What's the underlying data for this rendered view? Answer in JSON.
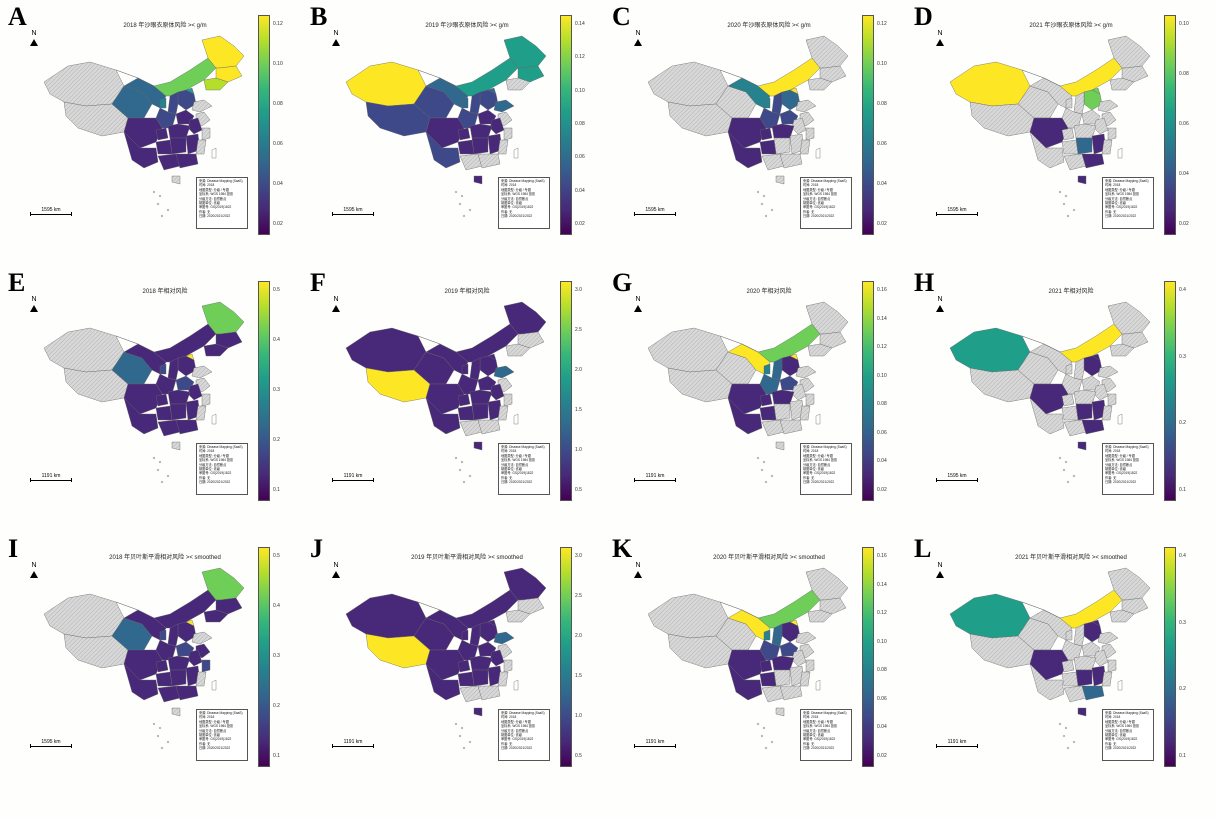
{
  "colors": {
    "none": "#d8d8d8",
    "stripe": "#a8a8a8",
    "border": "#666666",
    "ramp": [
      "#440154",
      "#482878",
      "#3e4989",
      "#31688e",
      "#26828e",
      "#1f9e89",
      "#35b779",
      "#6ece58",
      "#b5de2b",
      "#fde725"
    ]
  },
  "panels": [
    {
      "letter": "A",
      "title": "2018 年沙眼衣原体风险 >< g/m",
      "scale_label": "1595 km",
      "ticks": [
        "0.12",
        "0.10",
        "0.08",
        "0.06",
        "0.04",
        "0.02"
      ],
      "regions": {
        "xinjiang": "none",
        "tibet": "none",
        "qinghai": 3,
        "gansu": 3,
        "inner_mongolia": 7,
        "heilongjiang": 9,
        "jilin": 9,
        "liaoning": 8,
        "beijing": 5,
        "hebei": 2,
        "shanxi": 2,
        "shaanxi": 2,
        "ningxia": 4,
        "sichuan": 1,
        "yunnan": 1,
        "guizhou": 1,
        "chongqing": 1,
        "hubei": 1,
        "hunan": 1,
        "guangxi": 1,
        "guangdong": 1,
        "henan": 1,
        "anhui": 1,
        "jiangsu": "none",
        "zhejiang": "none",
        "shandong": "none",
        "fujian": "none",
        "jiangxi": 1,
        "hainan": "none"
      }
    },
    {
      "letter": "B",
      "title": "2019 年沙眼衣原体风险 >< g/m",
      "scale_label": "1595 km",
      "ticks": [
        "0.14",
        "0.12",
        "0.10",
        "0.08",
        "0.06",
        "0.04",
        "0.02"
      ],
      "regions": {
        "xinjiang": 9,
        "tibet": 2,
        "qinghai": 2,
        "gansu": 3,
        "inner_mongolia": 5,
        "heilongjiang": 5,
        "jilin": 5,
        "liaoning": "none",
        "beijing": 3,
        "hebei": 2,
        "shanxi": 2,
        "shaanxi": 2,
        "ningxia": 3,
        "sichuan": 1,
        "yunnan": 2,
        "guizhou": 1,
        "chongqing": 1,
        "hubei": 1,
        "hunan": 1,
        "guangxi": "none",
        "guangdong": "none",
        "henan": 1,
        "anhui": 1,
        "jiangsu": "none",
        "zhejiang": "none",
        "shandong": 3,
        "fujian": "none",
        "jiangxi": 1,
        "hainan": 1
      }
    },
    {
      "letter": "C",
      "title": "2020 年沙眼衣原体风险 >< g/m",
      "scale_label": "1595 km",
      "ticks": [
        "0.12",
        "0.10",
        "0.08",
        "0.06",
        "0.04",
        "0.02"
      ],
      "regions": {
        "xinjiang": "none",
        "tibet": "none",
        "qinghai": "none",
        "gansu": 4,
        "inner_mongolia": 9,
        "heilongjiang": "none",
        "jilin": "none",
        "liaoning": "none",
        "beijing": 9,
        "hebei": 3,
        "shanxi": 2,
        "shaanxi": 2,
        "ningxia": 4,
        "sichuan": 1,
        "yunnan": 1,
        "guizhou": 1,
        "chongqing": 1,
        "hubei": 1,
        "hunan": "none",
        "guangxi": "none",
        "guangdong": "none",
        "henan": 2,
        "anhui": "none",
        "jiangsu": "none",
        "zhejiang": "none",
        "shandong": "none",
        "fujian": "none",
        "jiangxi": "none",
        "hainan": "none"
      }
    },
    {
      "letter": "D",
      "title": "2021 年沙眼衣原体风险 >< g/m",
      "scale_label": "1595 km",
      "ticks": [
        "0.10",
        "0.08",
        "0.06",
        "0.04",
        "0.02"
      ],
      "regions": {
        "xinjiang": 9,
        "tibet": "none",
        "qinghai": "none",
        "gansu": "none",
        "inner_mongolia": 9,
        "heilongjiang": "none",
        "jilin": "none",
        "liaoning": "none",
        "beijing": 7,
        "hebei": 7,
        "shanxi": "none",
        "shaanxi": "none",
        "ningxia": "none",
        "sichuan": 1,
        "yunnan": "none",
        "guizhou": "none",
        "chongqing": "none",
        "hubei": "none",
        "hunan": 3,
        "guangxi": "none",
        "guangdong": 1,
        "henan": "none",
        "anhui": "none",
        "jiangsu": "none",
        "zhejiang": "none",
        "shandong": "none",
        "fujian": "none",
        "jiangxi": 1,
        "hainan": 1
      }
    },
    {
      "letter": "E",
      "title": "2018 年相对风险",
      "scale_label": "1191 km",
      "ticks": [
        "0.5",
        "0.4",
        "0.3",
        "0.2",
        "0.1"
      ],
      "regions": {
        "xinjiang": "none",
        "tibet": "none",
        "qinghai": 3,
        "gansu": 1,
        "inner_mongolia": 1,
        "heilongjiang": 7,
        "jilin": 1,
        "liaoning": 1,
        "beijing": 9,
        "hebei": 1,
        "shanxi": 1,
        "shaanxi": 1,
        "ningxia": 2,
        "sichuan": 1,
        "yunnan": 1,
        "guizhou": 1,
        "chongqing": 1,
        "hubei": 1,
        "hunan": 1,
        "guangxi": 1,
        "guangdong": 1,
        "henan": 2,
        "anhui": 1,
        "jiangsu": "none",
        "zhejiang": "none",
        "shandong": "none",
        "fujian": "none",
        "jiangxi": 1,
        "hainan": "none"
      }
    },
    {
      "letter": "F",
      "title": "2019 年相对风险",
      "scale_label": "1191 km",
      "ticks": [
        "3.0",
        "2.5",
        "2.0",
        "1.5",
        "1.0",
        "0.5"
      ],
      "regions": {
        "xinjiang": 1,
        "tibet": 9,
        "qinghai": 1,
        "gansu": 1,
        "inner_mongolia": 1,
        "heilongjiang": 1,
        "jilin": "none",
        "liaoning": "none",
        "beijing": 1,
        "hebei": 1,
        "shanxi": 1,
        "shaanxi": 1,
        "ningxia": 1,
        "sichuan": 1,
        "yunnan": 1,
        "guizhou": 1,
        "chongqing": 1,
        "hubei": 1,
        "hunan": 1,
        "guangxi": "none",
        "guangdong": "none",
        "henan": 1,
        "anhui": 1,
        "jiangsu": "none",
        "zhejiang": "none",
        "shandong": 3,
        "fujian": "none",
        "jiangxi": 1,
        "hainan": 1
      }
    },
    {
      "letter": "G",
      "title": "2020 年相对风险",
      "scale_label": "1191 km",
      "ticks": [
        "0.16",
        "0.14",
        "0.12",
        "0.10",
        "0.08",
        "0.06",
        "0.04",
        "0.02"
      ],
      "regions": {
        "xinjiang": "none",
        "tibet": "none",
        "qinghai": "none",
        "gansu": 9,
        "inner_mongolia": 7,
        "heilongjiang": "none",
        "jilin": "none",
        "liaoning": "none",
        "beijing": 9,
        "hebei": 1,
        "shanxi": 3,
        "shaanxi": 3,
        "ningxia": 4,
        "sichuan": 1,
        "yunnan": 1,
        "guizhou": 1,
        "chongqing": 1,
        "hubei": 1,
        "hunan": "none",
        "guangxi": "none",
        "guangdong": "none",
        "henan": 2,
        "anhui": "none",
        "jiangsu": "none",
        "zhejiang": "none",
        "shandong": "none",
        "fujian": "none",
        "jiangxi": "none",
        "hainan": "none"
      }
    },
    {
      "letter": "H",
      "title": "2021 年相对风险",
      "scale_label": "1595 km",
      "ticks": [
        "0.4",
        "0.3",
        "0.2",
        "0.1"
      ],
      "regions": {
        "xinjiang": 5,
        "tibet": "none",
        "qinghai": "none",
        "gansu": "none",
        "inner_mongolia": 9,
        "heilongjiang": "none",
        "jilin": "none",
        "liaoning": "none",
        "beijing": 1,
        "hebei": 1,
        "shanxi": "none",
        "shaanxi": "none",
        "ningxia": "none",
        "sichuan": 1,
        "yunnan": "none",
        "guizhou": "none",
        "chongqing": "none",
        "hubei": "none",
        "hunan": 1,
        "guangxi": "none",
        "guangdong": 1,
        "henan": "none",
        "anhui": "none",
        "jiangsu": "none",
        "zhejiang": "none",
        "shandong": "none",
        "fujian": "none",
        "jiangxi": 1,
        "hainan": 1
      }
    },
    {
      "letter": "I",
      "title": "2018 年贝叶斯平滑相对风险 >< smoothed",
      "scale_label": "1595 km",
      "ticks": [
        "0.5",
        "0.4",
        "0.3",
        "0.2",
        "0.1"
      ],
      "regions": {
        "xinjiang": "none",
        "tibet": "none",
        "qinghai": 3,
        "gansu": 1,
        "inner_mongolia": 1,
        "heilongjiang": 7,
        "jilin": 1,
        "liaoning": 1,
        "beijing": 9,
        "hebei": 1,
        "shanxi": 1,
        "shaanxi": 1,
        "ningxia": 2,
        "sichuan": 1,
        "yunnan": 1,
        "guizhou": 1,
        "chongqing": 1,
        "hubei": 1,
        "hunan": 1,
        "guangxi": 1,
        "guangdong": 1,
        "henan": 2,
        "anhui": 1,
        "jiangsu": 1,
        "zhejiang": 2,
        "shandong": "none",
        "fujian": "none",
        "jiangxi": 1,
        "hainan": "none"
      }
    },
    {
      "letter": "J",
      "title": "2019 年贝叶斯平滑相对风险 >< smoothed",
      "scale_label": "1191 km",
      "ticks": [
        "3.0",
        "2.5",
        "2.0",
        "1.5",
        "1.0",
        "0.5"
      ],
      "regions": {
        "xinjiang": 1,
        "tibet": 9,
        "qinghai": 1,
        "gansu": 1,
        "inner_mongolia": 1,
        "heilongjiang": 1,
        "jilin": "none",
        "liaoning": "none",
        "beijing": 1,
        "hebei": 1,
        "shanxi": 1,
        "shaanxi": 1,
        "ningxia": 1,
        "sichuan": 1,
        "yunnan": 1,
        "guizhou": 1,
        "chongqing": 1,
        "hubei": 1,
        "hunan": 1,
        "guangxi": "none",
        "guangdong": "none",
        "henan": 1,
        "anhui": 1,
        "jiangsu": "none",
        "zhejiang": "none",
        "shandong": 3,
        "fujian": "none",
        "jiangxi": 1,
        "hainan": 1
      }
    },
    {
      "letter": "K",
      "title": "2020 年贝叶斯平滑相对风险 >< smoothed",
      "scale_label": "1191 km",
      "ticks": [
        "0.16",
        "0.14",
        "0.12",
        "0.10",
        "0.08",
        "0.06",
        "0.04",
        "0.02"
      ],
      "regions": {
        "xinjiang": "none",
        "tibet": "none",
        "qinghai": "none",
        "gansu": 9,
        "inner_mongolia": 7,
        "heilongjiang": "none",
        "jilin": "none",
        "liaoning": "none",
        "beijing": 9,
        "hebei": 1,
        "shanxi": 3,
        "shaanxi": 2,
        "ningxia": 4,
        "sichuan": 1,
        "yunnan": 1,
        "guizhou": 1,
        "chongqing": 1,
        "hubei": 1,
        "hunan": "none",
        "guangxi": "none",
        "guangdong": "none",
        "henan": 2,
        "anhui": "none",
        "jiangsu": "none",
        "zhejiang": "none",
        "shandong": "none",
        "fujian": "none",
        "jiangxi": "none",
        "hainan": "none"
      }
    },
    {
      "letter": "L",
      "title": "2021 年贝叶斯平滑相对风险 >< smoothed",
      "scale_label": "1191 km",
      "ticks": [
        "0.4",
        "0.3",
        "0.2",
        "0.1"
      ],
      "regions": {
        "xinjiang": 5,
        "tibet": "none",
        "qinghai": "none",
        "gansu": "none",
        "inner_mongolia": 9,
        "heilongjiang": "none",
        "jilin": "none",
        "liaoning": "none",
        "beijing": 1,
        "hebei": 1,
        "shanxi": "none",
        "shaanxi": "none",
        "ningxia": "none",
        "sichuan": 1,
        "yunnan": "none",
        "guizhou": "none",
        "chongqing": "none",
        "hubei": "none",
        "hunan": 1,
        "guangxi": "none",
        "guangdong": 3,
        "henan": "none",
        "anhui": "none",
        "jiangsu": "none",
        "zhejiang": "none",
        "shandong": "none",
        "fujian": "none",
        "jiangxi": 1,
        "hainan": 1
      }
    }
  ],
  "legend_lines": [
    "来源: Disease Mapping (SaaS)",
    "时间: 2018",
    "地图类型: 分级 / 专题",
    "坐标系: WGS 1984 投影",
    "分级方法: 自然断点",
    "制图单位: 省级",
    "审图号: GS(2019)1822",
    "作者: 无",
    "日期: 2020/2021/2022"
  ],
  "north_label": "N"
}
